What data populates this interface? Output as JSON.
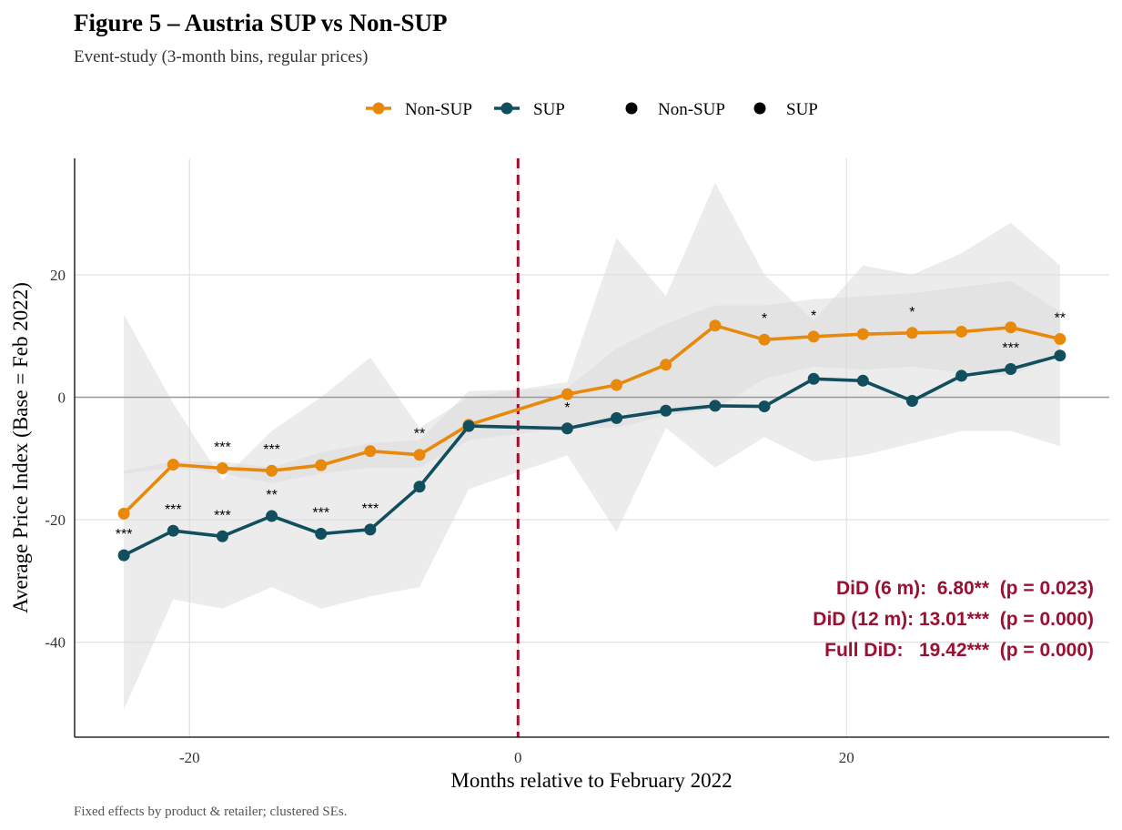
{
  "colors": {
    "nonsup": "#e8890c",
    "sup": "#114e5e",
    "ci": "#d9d9d9",
    "vline": "#a0102c",
    "hline": "#999999",
    "grid": "#e3e3e3",
    "did_text": "#9b1030"
  },
  "chart_data": {
    "type": "line",
    "title": "Figure 5 – Austria SUP vs Non-SUP",
    "subtitle": "Event-study (3-month bins, regular prices)",
    "xlabel": "Months relative to February 2022",
    "ylabel": "Average Price Index (Base = Feb 2022)",
    "caption": "Fixed effects by product & retailer; clustered SEs.",
    "xlim": [
      -27,
      36
    ],
    "ylim": [
      -55.5,
      39
    ],
    "x_ticks": [
      -20,
      0,
      20
    ],
    "x_tick_labels": [
      "-20",
      "0",
      "20"
    ],
    "y_ticks": [
      -40,
      -20,
      0,
      20
    ],
    "y_tick_labels": [
      "-40",
      "-20",
      "0",
      "20"
    ],
    "grid": true,
    "vline_x": 0,
    "hline_y": 0,
    "legend": {
      "position": "top",
      "entries": [
        {
          "label": "Non-SUP",
          "kind": "line-point",
          "series": "nonsup"
        },
        {
          "label": "SUP",
          "kind": "line-point",
          "series": "sup"
        },
        {
          "label": "Non-SUP",
          "kind": "point",
          "series": "black"
        },
        {
          "label": "SUP",
          "kind": "point",
          "series": "black"
        }
      ]
    },
    "x": [
      -24,
      -21,
      -18,
      -15,
      -12,
      -9,
      -6,
      -3,
      3,
      6,
      9,
      12,
      15,
      18,
      21,
      24,
      27,
      30,
      33
    ],
    "series": [
      {
        "name": "Non-SUP",
        "key": "nonsup",
        "values": [
          -19.0,
          -11.0,
          -11.6,
          -12.0,
          -11.1,
          -8.8,
          -9.4,
          -4.5,
          0.5,
          2.0,
          5.3,
          11.7,
          9.4,
          9.9,
          10.3,
          10.5,
          10.7,
          11.4,
          9.5
        ],
        "sig": [
          "",
          "",
          "***",
          "***",
          "",
          "",
          "**",
          "",
          "",
          "",
          "",
          "",
          "*",
          "*",
          "",
          "*",
          "",
          "",
          "**"
        ],
        "ci_lower": [
          -12.5,
          -11.5,
          -12.5,
          -14.0,
          -12.5,
          -11.5,
          -11.5,
          -7.0,
          -5.0,
          -5.0,
          -3.0,
          -2.0,
          3.0,
          5.0,
          4.5,
          5.0,
          4.0,
          3.5,
          7.0
        ],
        "ci_upper": [
          -12.0,
          -10.5,
          -10.5,
          -11.5,
          -9.0,
          -7.5,
          -7.0,
          1.0,
          1.5,
          8.0,
          12.0,
          15.0,
          15.0,
          16.0,
          16.5,
          17.0,
          18.0,
          19.0,
          14.0
        ]
      },
      {
        "name": "SUP",
        "key": "sup",
        "values": [
          -25.8,
          -21.8,
          -22.7,
          -19.4,
          -22.3,
          -21.6,
          -14.6,
          -4.7,
          -5.1,
          -3.4,
          -2.2,
          -1.4,
          -1.5,
          3.0,
          2.7,
          -0.6,
          3.5,
          4.6,
          6.8
        ],
        "sig": [
          "***",
          "***",
          "***",
          "**",
          "***",
          "***",
          "",
          "",
          "*",
          "",
          "",
          "",
          "",
          "",
          "",
          "",
          "",
          "***",
          ""
        ],
        "ci_lower": [
          -51.0,
          -33.0,
          -34.5,
          -31.0,
          -34.5,
          -32.5,
          -31.0,
          -15.0,
          -9.5,
          -22.0,
          -5.0,
          -11.5,
          -6.5,
          -10.5,
          -9.5,
          -7.5,
          -5.5,
          -5.5,
          -8.0
        ],
        "ci_upper": [
          13.5,
          -1.0,
          -13.5,
          -5.5,
          0.0,
          6.5,
          -5.0,
          0.0,
          2.5,
          26.0,
          16.5,
          35.0,
          20.0,
          12.5,
          21.5,
          20.0,
          23.5,
          28.5,
          21.5
        ]
      }
    ],
    "annotations": [
      {
        "text": "DiD (6 m):  6.80**  (p = 0.023)"
      },
      {
        "text": "DiD (12 m): 13.01***  (p = 0.000)"
      },
      {
        "text": "Full DiD:   19.42***  (p = 0.000)"
      }
    ]
  }
}
